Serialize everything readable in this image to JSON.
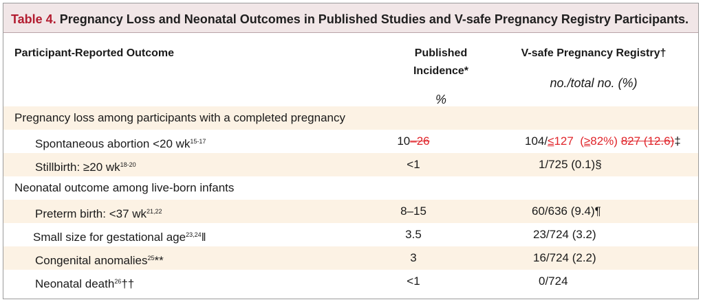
{
  "title": {
    "table_no": "Table 4.",
    "text": "Pregnancy Loss and Neonatal Outcomes in Published Studies and V-safe Pregnancy Registry Participants."
  },
  "header": {
    "outcome": "Participant-Reported Outcome",
    "published_line1": "Published",
    "published_line2": "Incidence*",
    "published_unit": "%",
    "registry": "V-safe Pregnancy Registry†",
    "registry_unit": "no./total no. (%)"
  },
  "sections": [
    {
      "heading": "Pregnancy loss among participants with a completed pregnancy",
      "rows": [
        {
          "label": "Spontaneous abortion <20 wk",
          "ref": "15-17",
          "published_a": "10",
          "published_strike": "–26",
          "registry_a": "104/",
          "registry_ins_le": "≤",
          "registry_ins_num": "127  (",
          "registry_ins_ge": "≥",
          "registry_ins_rest": "82%) ",
          "registry_strike": "827 (12.6)",
          "registry_mark": "‡"
        },
        {
          "label": "Stillbirth: ≥20 wk",
          "ref": "18-20",
          "published": "<1",
          "registry": "1/725 (0.1)§"
        }
      ]
    },
    {
      "heading": "Neonatal outcome among live-born infants",
      "rows": [
        {
          "label": "Preterm birth: <37 wk",
          "ref": "21,22",
          "published": "8–15",
          "registry": "60/636 (9.4)¶"
        },
        {
          "label": "Small size for gestational age",
          "ref": "23,24",
          "mark": "‖",
          "published": "3.5",
          "registry": "23/724 (3.2)"
        },
        {
          "label": "Congenital anomalies",
          "ref": "25",
          "mark": "**",
          "published": "3",
          "registry": "16/724 (2.2)"
        },
        {
          "label": "Neonatal death",
          "ref": "26",
          "mark": "††",
          "published": "<1",
          "registry": "0/724"
        }
      ]
    }
  ]
}
